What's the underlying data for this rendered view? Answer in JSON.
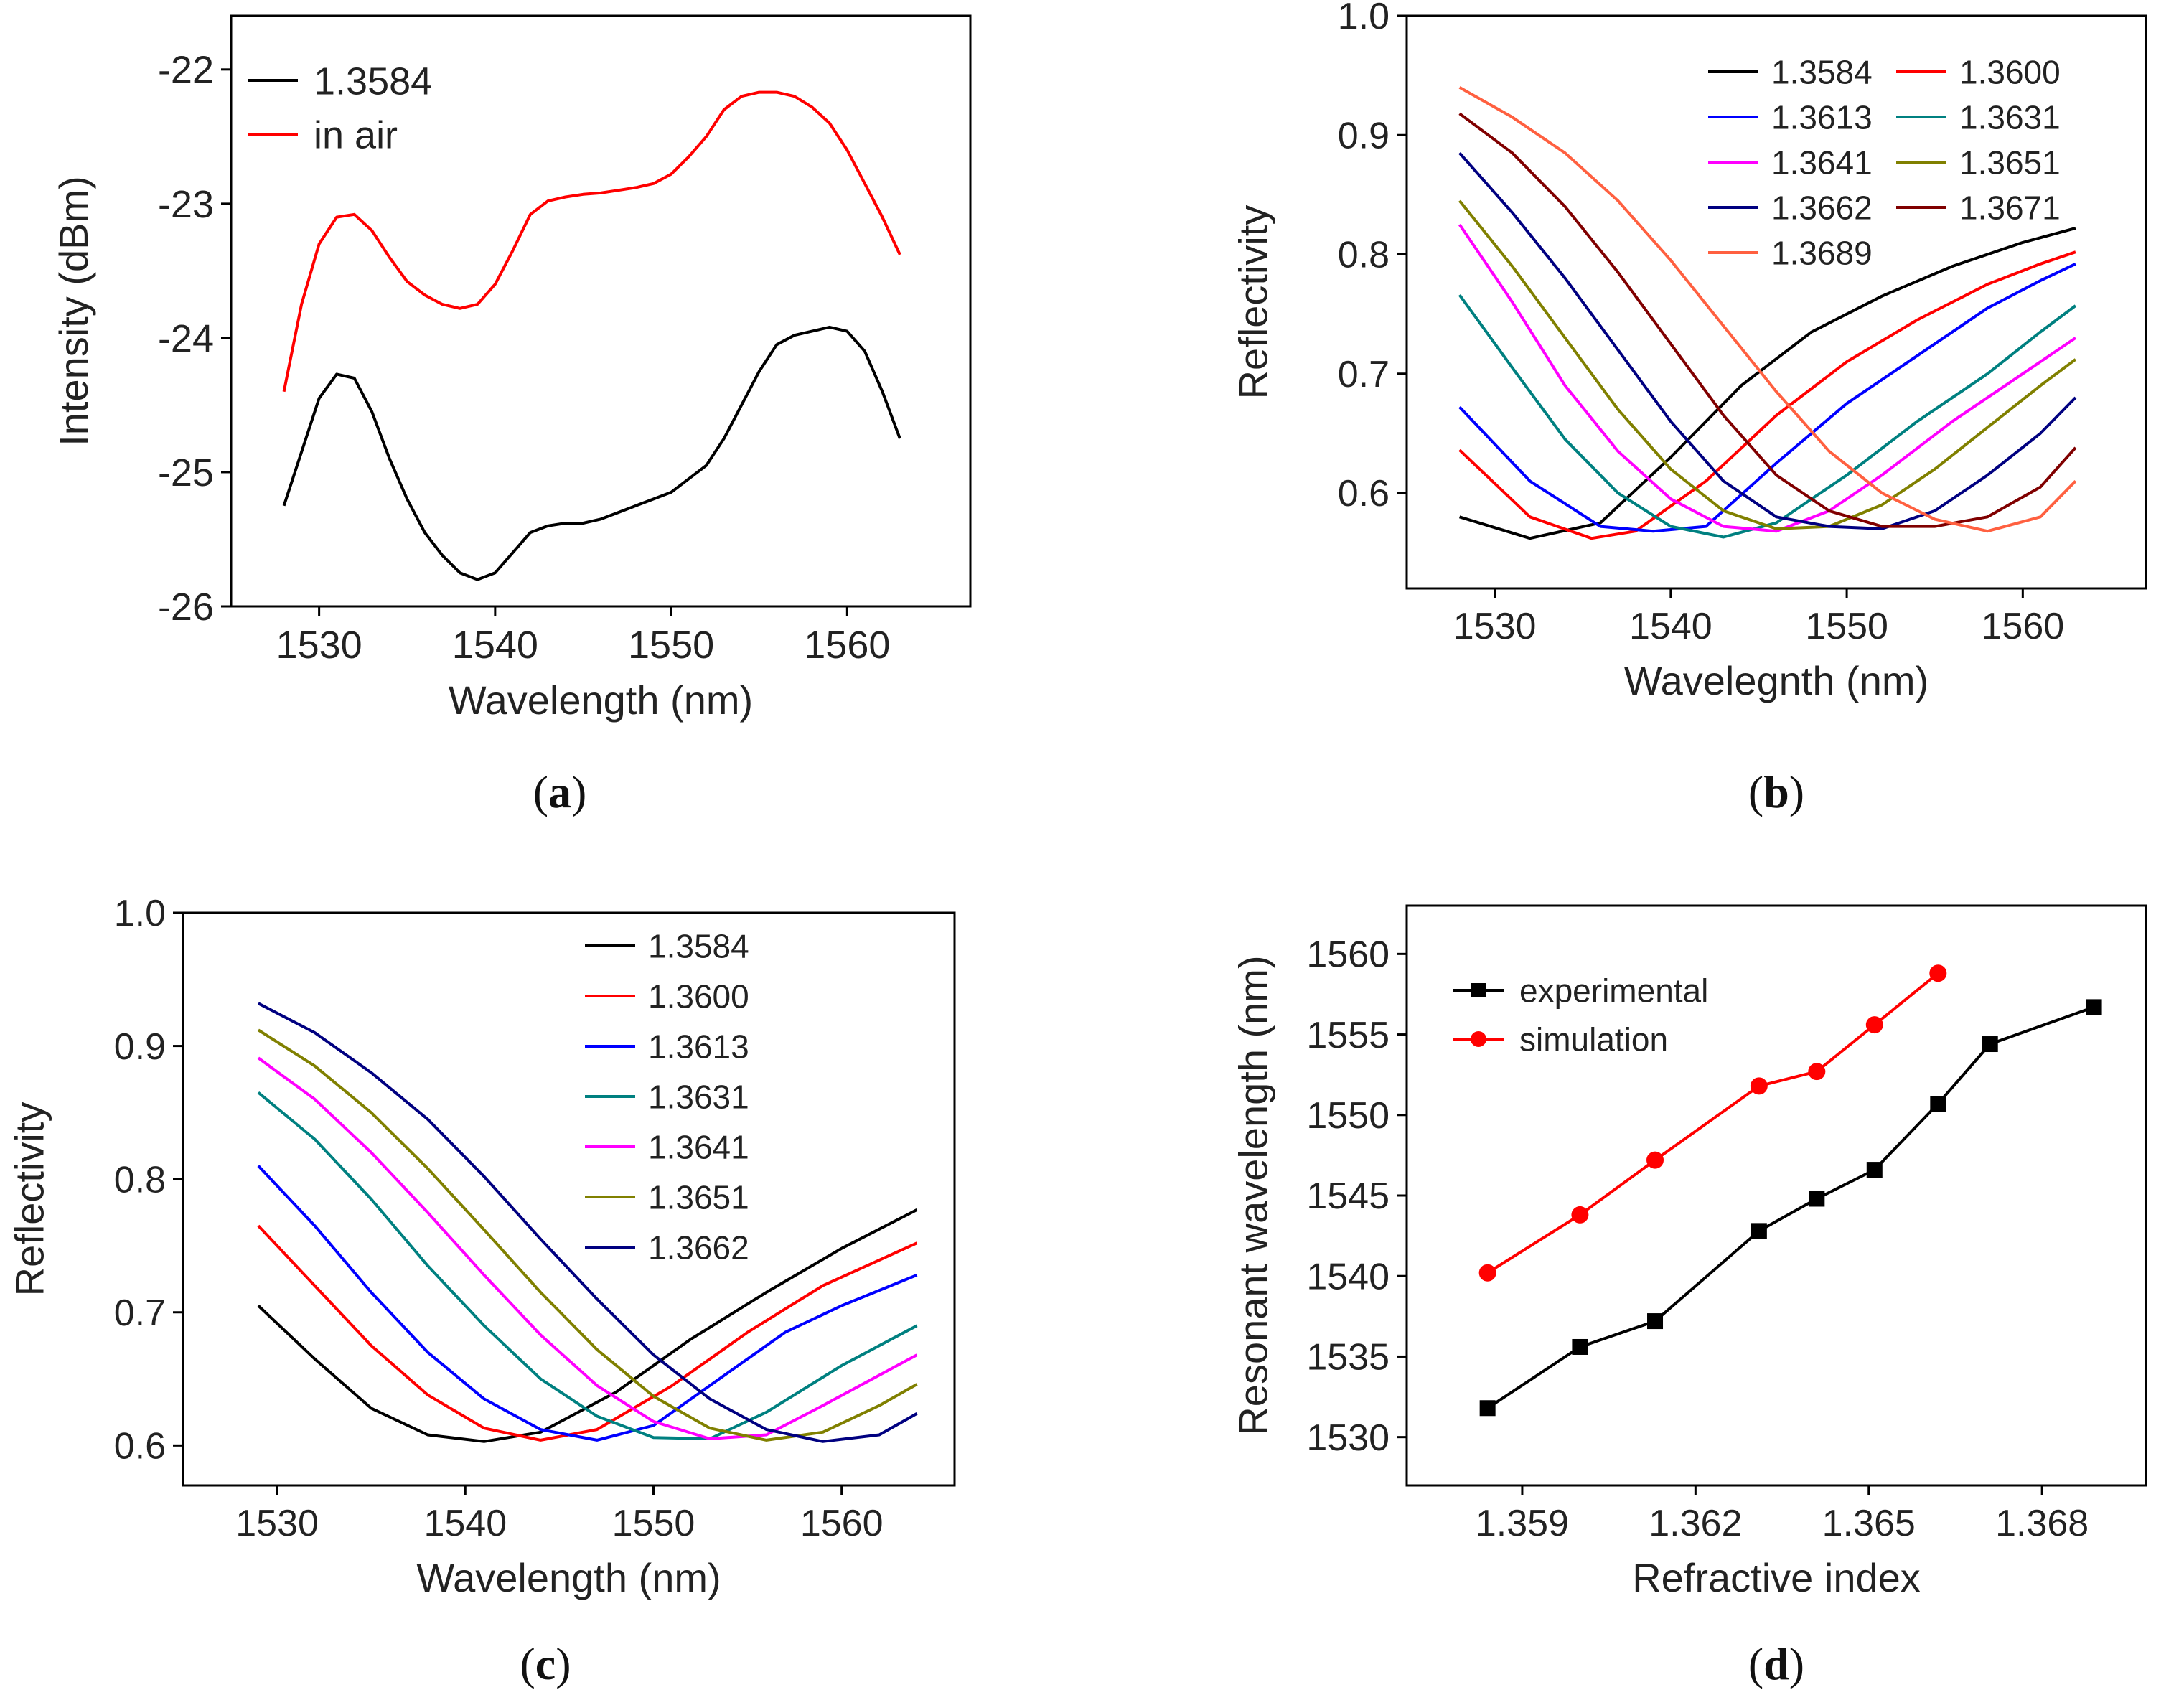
{
  "chart_data": [
    {
      "id": "a",
      "type": "line",
      "panel_label": "a",
      "xlabel": "Wavelength (nm)",
      "ylabel": "Intensity (dBm)",
      "xlim": [
        1525,
        1567
      ],
      "ylim": [
        -26,
        -21.6
      ],
      "xticks": [
        1530,
        1540,
        1550,
        1560
      ],
      "yticks": [
        -26,
        -25,
        -24,
        -23,
        -22
      ],
      "grid": false,
      "legend": "top-left",
      "series": [
        {
          "name": "1.3584",
          "color": "#000000",
          "x": [
            1528,
            1529,
            1530,
            1531,
            1532,
            1533,
            1534,
            1535,
            1536,
            1537,
            1538,
            1539,
            1540,
            1541,
            1542,
            1543,
            1544,
            1545,
            1546,
            1547,
            1548,
            1549,
            1550,
            1551,
            1552,
            1553,
            1554,
            1555,
            1556,
            1557,
            1558,
            1559,
            1560,
            1561,
            1562,
            1563
          ],
          "y": [
            -25.25,
            -24.85,
            -24.45,
            -24.27,
            -24.3,
            -24.55,
            -24.9,
            -25.2,
            -25.45,
            -25.62,
            -25.75,
            -25.8,
            -25.75,
            -25.6,
            -25.45,
            -25.4,
            -25.38,
            -25.38,
            -25.35,
            -25.3,
            -25.25,
            -25.2,
            -25.15,
            -25.05,
            -24.95,
            -24.75,
            -24.5,
            -24.25,
            -24.05,
            -23.98,
            -23.95,
            -23.92,
            -23.95,
            -24.1,
            -24.4,
            -24.75
          ]
        },
        {
          "name": "in air",
          "color": "#ff0000",
          "x": [
            1528,
            1529,
            1530,
            1531,
            1532,
            1533,
            1534,
            1535,
            1536,
            1537,
            1538,
            1539,
            1540,
            1541,
            1542,
            1543,
            1544,
            1545,
            1546,
            1547,
            1548,
            1549,
            1550,
            1551,
            1552,
            1553,
            1554,
            1555,
            1556,
            1557,
            1558,
            1559,
            1560,
            1561,
            1562,
            1563
          ],
          "y": [
            -24.4,
            -23.75,
            -23.3,
            -23.1,
            -23.08,
            -23.2,
            -23.4,
            -23.58,
            -23.68,
            -23.75,
            -23.78,
            -23.75,
            -23.6,
            -23.35,
            -23.08,
            -22.98,
            -22.95,
            -22.93,
            -22.92,
            -22.9,
            -22.88,
            -22.85,
            -22.78,
            -22.65,
            -22.5,
            -22.3,
            -22.2,
            -22.17,
            -22.17,
            -22.2,
            -22.28,
            -22.4,
            -22.6,
            -22.85,
            -23.1,
            -23.38
          ]
        }
      ]
    },
    {
      "id": "b",
      "type": "line",
      "panel_label": "b",
      "xlabel": "Wavelegnth (nm)",
      "ylabel": "Reflectivity",
      "xlim": [
        1525,
        1567
      ],
      "ylim": [
        0.52,
        1.0
      ],
      "xticks": [
        1530,
        1540,
        1550,
        1560
      ],
      "yticks": [
        0.6,
        0.7,
        0.8,
        0.9,
        1.0
      ],
      "grid": false,
      "legend": "top-right, two columns",
      "series": [
        {
          "name": "1.3584",
          "color": "#000000",
          "x": [
            1528,
            1532,
            1536,
            1540,
            1544,
            1548,
            1552,
            1556,
            1560,
            1563
          ],
          "y": [
            0.58,
            0.562,
            0.575,
            0.63,
            0.69,
            0.735,
            0.765,
            0.79,
            0.81,
            0.822
          ]
        },
        {
          "name": "1.3600",
          "color": "#ff0000",
          "x": [
            1528,
            1532,
            1535.5,
            1538,
            1542,
            1546,
            1550,
            1554,
            1558,
            1561,
            1563
          ],
          "y": [
            0.636,
            0.58,
            0.562,
            0.568,
            0.61,
            0.665,
            0.71,
            0.745,
            0.775,
            0.792,
            0.802
          ]
        },
        {
          "name": "1.3613",
          "color": "#0000ff",
          "x": [
            1528,
            1532,
            1536,
            1539,
            1542,
            1546,
            1550,
            1554,
            1558,
            1561,
            1563
          ],
          "y": [
            0.672,
            0.61,
            0.572,
            0.568,
            0.572,
            0.625,
            0.675,
            0.715,
            0.755,
            0.778,
            0.792
          ]
        },
        {
          "name": "1.3631",
          "color": "#008080",
          "x": [
            1528,
            1531,
            1534,
            1537,
            1540,
            1543,
            1546,
            1550,
            1554,
            1558,
            1561,
            1563
          ],
          "y": [
            0.766,
            0.705,
            0.645,
            0.6,
            0.572,
            0.563,
            0.575,
            0.615,
            0.66,
            0.7,
            0.735,
            0.757
          ]
        },
        {
          "name": "1.3641",
          "color": "#ff00ff",
          "x": [
            1528,
            1531,
            1534,
            1537,
            1540,
            1543,
            1546,
            1549,
            1552,
            1556,
            1560,
            1563
          ],
          "y": [
            0.825,
            0.76,
            0.69,
            0.635,
            0.595,
            0.572,
            0.568,
            0.585,
            0.615,
            0.66,
            0.7,
            0.73
          ]
        },
        {
          "name": "1.3651",
          "color": "#808000",
          "x": [
            1528,
            1531,
            1534,
            1537,
            1540,
            1543,
            1546,
            1549,
            1552,
            1555,
            1558,
            1561,
            1563
          ],
          "y": [
            0.845,
            0.79,
            0.73,
            0.67,
            0.62,
            0.585,
            0.57,
            0.572,
            0.59,
            0.62,
            0.655,
            0.69,
            0.712
          ]
        },
        {
          "name": "1.3662",
          "color": "#000080",
          "x": [
            1528,
            1531,
            1534,
            1537,
            1540,
            1543,
            1546,
            1549,
            1552,
            1555,
            1558,
            1561,
            1563
          ],
          "y": [
            0.885,
            0.835,
            0.78,
            0.72,
            0.66,
            0.61,
            0.58,
            0.572,
            0.57,
            0.585,
            0.615,
            0.65,
            0.68
          ]
        },
        {
          "name": "1.3671",
          "color": "#800000",
          "x": [
            1528,
            1531,
            1534,
            1537,
            1540,
            1543,
            1546,
            1549,
            1552,
            1555,
            1558,
            1561,
            1563
          ],
          "y": [
            0.918,
            0.885,
            0.84,
            0.785,
            0.725,
            0.665,
            0.615,
            0.585,
            0.572,
            0.572,
            0.58,
            0.605,
            0.638
          ]
        },
        {
          "name": "1.3689",
          "color": "#ff6040",
          "x": [
            1528,
            1531,
            1534,
            1537,
            1540,
            1543,
            1546,
            1549,
            1552,
            1555,
            1558,
            1561,
            1563
          ],
          "y": [
            0.94,
            0.915,
            0.885,
            0.845,
            0.795,
            0.74,
            0.685,
            0.635,
            0.6,
            0.578,
            0.568,
            0.58,
            0.61
          ]
        }
      ]
    },
    {
      "id": "c",
      "type": "line",
      "panel_label": "c",
      "xlabel": "Wavelength (nm)",
      "ylabel": "Reflectivity",
      "xlim": [
        1525,
        1566
      ],
      "ylim": [
        0.57,
        1.0
      ],
      "xticks": [
        1530,
        1540,
        1550,
        1560
      ],
      "yticks": [
        0.6,
        0.7,
        0.8,
        0.9,
        1.0
      ],
      "grid": false,
      "legend": "top-right",
      "series": [
        {
          "name": "1.3584",
          "color": "#000000",
          "x": [
            1529,
            1532,
            1535,
            1538,
            1541,
            1544,
            1548,
            1552,
            1556,
            1560,
            1564
          ],
          "y": [
            0.705,
            0.665,
            0.628,
            0.608,
            0.603,
            0.61,
            0.64,
            0.68,
            0.715,
            0.748,
            0.777
          ]
        },
        {
          "name": "1.3600",
          "color": "#ff0000",
          "x": [
            1529,
            1532,
            1535,
            1538,
            1541,
            1544,
            1547,
            1551,
            1555,
            1559,
            1564
          ],
          "y": [
            0.765,
            0.72,
            0.675,
            0.638,
            0.613,
            0.604,
            0.612,
            0.645,
            0.685,
            0.72,
            0.752
          ]
        },
        {
          "name": "1.3613",
          "color": "#0000ff",
          "x": [
            1529,
            1532,
            1535,
            1538,
            1541,
            1544,
            1547,
            1550,
            1553,
            1557,
            1560,
            1564
          ],
          "y": [
            0.81,
            0.765,
            0.715,
            0.67,
            0.635,
            0.612,
            0.604,
            0.615,
            0.645,
            0.685,
            0.705,
            0.728
          ]
        },
        {
          "name": "1.3631",
          "color": "#008080",
          "x": [
            1529,
            1532,
            1535,
            1538,
            1541,
            1544,
            1547,
            1550,
            1553,
            1556,
            1560,
            1564
          ],
          "y": [
            0.865,
            0.83,
            0.785,
            0.735,
            0.69,
            0.65,
            0.622,
            0.606,
            0.605,
            0.625,
            0.66,
            0.69
          ]
        },
        {
          "name": "1.3641",
          "color": "#ff00ff",
          "x": [
            1529,
            1532,
            1535,
            1538,
            1541,
            1544,
            1547,
            1550,
            1553,
            1556,
            1559,
            1564
          ],
          "y": [
            0.891,
            0.86,
            0.82,
            0.775,
            0.728,
            0.683,
            0.645,
            0.618,
            0.605,
            0.608,
            0.63,
            0.668
          ]
        },
        {
          "name": "1.3651",
          "color": "#808000",
          "x": [
            1529,
            1532,
            1535,
            1538,
            1541,
            1544,
            1547,
            1550,
            1553,
            1556,
            1559,
            1562,
            1564
          ],
          "y": [
            0.912,
            0.885,
            0.85,
            0.808,
            0.762,
            0.715,
            0.672,
            0.637,
            0.613,
            0.604,
            0.61,
            0.63,
            0.646
          ]
        },
        {
          "name": "1.3662",
          "color": "#000080",
          "x": [
            1529,
            1532,
            1535,
            1538,
            1541,
            1544,
            1547,
            1550,
            1553,
            1556,
            1559,
            1562,
            1564
          ],
          "y": [
            0.932,
            0.91,
            0.88,
            0.845,
            0.802,
            0.755,
            0.71,
            0.668,
            0.635,
            0.612,
            0.603,
            0.608,
            0.624
          ]
        }
      ]
    },
    {
      "id": "d",
      "type": "line",
      "panel_label": "d",
      "xlabel": "Refractive index",
      "ylabel": "Resonant wavelength (nm)",
      "xlim": [
        1.357,
        1.3698
      ],
      "ylim": [
        1527,
        1563
      ],
      "xticks": [
        "1.359",
        "1.362",
        "1.365",
        "1.368"
      ],
      "yticks": [
        1530,
        1535,
        1540,
        1545,
        1550,
        1555,
        1560
      ],
      "grid": false,
      "legend": "top-left",
      "series": [
        {
          "name": "experimental",
          "color": "#000000",
          "marker": "square",
          "x": [
            1.3584,
            1.36,
            1.3613,
            1.3631,
            1.3641,
            1.3651,
            1.3662,
            1.3671,
            1.3689
          ],
          "y": [
            1531.8,
            1535.6,
            1537.2,
            1542.8,
            1544.8,
            1546.6,
            1550.7,
            1554.4,
            1556.7
          ]
        },
        {
          "name": "simulation",
          "color": "#ff0000",
          "marker": "circle",
          "x": [
            1.3584,
            1.36,
            1.3613,
            1.3631,
            1.3641,
            1.3651,
            1.3662
          ],
          "y": [
            1540.2,
            1543.8,
            1547.2,
            1551.8,
            1552.7,
            1555.6,
            1558.8
          ]
        }
      ]
    }
  ]
}
